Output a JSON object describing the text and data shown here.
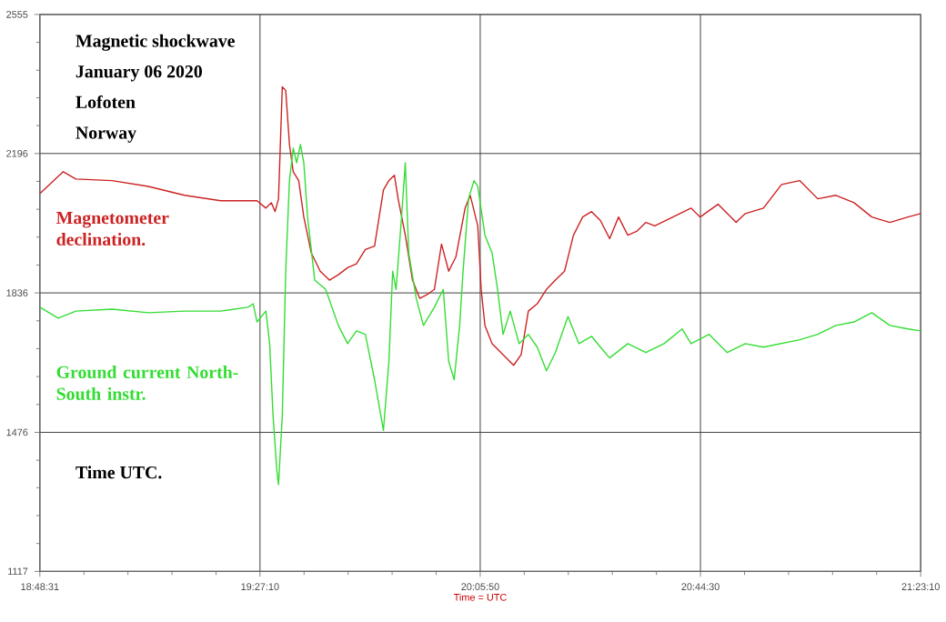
{
  "chart_data": {
    "type": "line",
    "title": "Magnetic shockwave",
    "subtitle": "January 06 2020",
    "xlabel": "Time = UTC",
    "annotations": [
      "Lofoten",
      "Norway",
      "Time UTC."
    ],
    "xlim": [
      18.80861,
      21.38611
    ],
    "ylim": [
      1117,
      2555
    ],
    "xticks": [
      {
        "value": 18.80861,
        "label": "18:48:31"
      },
      {
        "value": 18.9375,
        "label": null
      },
      {
        "value": 19.0664,
        "label": null
      },
      {
        "value": 19.1953,
        "label": null
      },
      {
        "value": 19.3242,
        "label": null
      },
      {
        "value": 19.45278,
        "label": "19:27:10"
      },
      {
        "value": 19.5817,
        "label": null
      },
      {
        "value": 19.7106,
        "label": null
      },
      {
        "value": 19.8394,
        "label": null
      },
      {
        "value": 19.9683,
        "label": null
      },
      {
        "value": 20.09722,
        "label": "20:05:50"
      },
      {
        "value": 20.2261,
        "label": null
      },
      {
        "value": 20.355,
        "label": null
      },
      {
        "value": 20.4839,
        "label": null
      },
      {
        "value": 20.6128,
        "label": null
      },
      {
        "value": 20.74167,
        "label": "20:44:30"
      },
      {
        "value": 20.8706,
        "label": null
      },
      {
        "value": 20.9994,
        "label": null
      },
      {
        "value": 21.1283,
        "label": null
      },
      {
        "value": 21.2572,
        "label": null
      },
      {
        "value": 21.38611,
        "label": "21:23:10"
      }
    ],
    "yticks": [
      1117,
      {
        "value": 1189,
        "label": null
      },
      {
        "value": 1261,
        "label": null
      },
      {
        "value": 1333,
        "label": null
      },
      {
        "value": 1404,
        "label": null
      },
      1476,
      {
        "value": 1548,
        "label": null
      },
      {
        "value": 1620,
        "label": null
      },
      {
        "value": 1692,
        "label": null
      },
      {
        "value": 1764,
        "label": null
      },
      1836,
      {
        "value": 1908,
        "label": null
      },
      {
        "value": 1980,
        "label": null
      },
      {
        "value": 2052,
        "label": null
      },
      {
        "value": 2124,
        "label": null
      },
      2196,
      {
        "value": 2268,
        "label": null
      },
      {
        "value": 2340,
        "label": null
      },
      {
        "value": 2411,
        "label": null
      },
      {
        "value": 2483,
        "label": null
      },
      2555
    ],
    "grid": true,
    "series": [
      {
        "name": "Magnetometer declination.",
        "color": "#cc2222",
        "x": [
          18.809,
          18.877,
          18.914,
          19.02,
          19.126,
          19.232,
          19.338,
          19.444,
          19.47,
          19.486,
          19.497,
          19.507,
          19.518,
          19.528,
          19.539,
          19.55,
          19.566,
          19.581,
          19.603,
          19.629,
          19.656,
          19.682,
          19.709,
          19.735,
          19.761,
          19.788,
          19.814,
          19.83,
          19.846,
          19.857,
          19.878,
          19.899,
          19.92,
          19.941,
          19.963,
          19.984,
          20.005,
          20.026,
          20.053,
          20.068,
          20.09,
          20.1,
          20.111,
          20.132,
          20.158,
          20.195,
          20.217,
          20.238,
          20.264,
          20.291,
          20.317,
          20.344,
          20.37,
          20.397,
          20.423,
          20.449,
          20.476,
          20.502,
          20.529,
          20.555,
          20.582,
          20.608,
          20.661,
          20.714,
          20.741,
          20.793,
          20.846,
          20.873,
          20.926,
          20.979,
          21.032,
          21.085,
          21.138,
          21.191,
          21.243,
          21.296,
          21.349,
          21.386
        ],
        "values": [
          2093,
          2149,
          2130,
          2126,
          2111,
          2088,
          2074,
          2074,
          2055,
          2069,
          2046,
          2079,
          2368,
          2359,
          2219,
          2149,
          2126,
          2032,
          1939,
          1892,
          1869,
          1883,
          1901,
          1911,
          1948,
          1957,
          2102,
          2126,
          2140,
          2079,
          1985,
          1869,
          1822,
          1831,
          1845,
          1962,
          1892,
          1929,
          2055,
          2088,
          2009,
          1845,
          1752,
          1705,
          1682,
          1649,
          1677,
          1789,
          1808,
          1845,
          1869,
          1892,
          1985,
          2032,
          2046,
          2023,
          1976,
          2032,
          1985,
          1995,
          2018,
          2009,
          2032,
          2055,
          2032,
          2065,
          2018,
          2041,
          2055,
          2116,
          2126,
          2079,
          2088,
          2069,
          2032,
          2018,
          2032,
          2041
        ]
      },
      {
        "name": "Ground current North-South instr.",
        "color": "#33dd33",
        "x": [
          18.809,
          18.862,
          18.914,
          19.02,
          19.126,
          19.232,
          19.338,
          19.417,
          19.433,
          19.444,
          19.47,
          19.481,
          19.491,
          19.502,
          19.507,
          19.518,
          19.528,
          19.539,
          19.55,
          19.56,
          19.571,
          19.581,
          19.592,
          19.613,
          19.645,
          19.682,
          19.709,
          19.735,
          19.761,
          19.788,
          19.814,
          19.83,
          19.841,
          19.851,
          19.867,
          19.878,
          19.888,
          19.91,
          19.931,
          19.963,
          19.989,
          20.005,
          20.021,
          20.037,
          20.047,
          20.063,
          20.079,
          20.09,
          20.111,
          20.132,
          20.148,
          20.164,
          20.185,
          20.211,
          20.238,
          20.264,
          20.291,
          20.317,
          20.354,
          20.386,
          20.423,
          20.449,
          20.476,
          20.529,
          20.582,
          20.635,
          20.688,
          20.714,
          20.767,
          20.82,
          20.873,
          20.926,
          21.032,
          21.085,
          21.138,
          21.191,
          21.243,
          21.296,
          21.349,
          21.386
        ],
        "values": [
          1799,
          1771,
          1789,
          1794,
          1785,
          1789,
          1789,
          1799,
          1808,
          1761,
          1789,
          1705,
          1519,
          1378,
          1341,
          1519,
          1892,
          2126,
          2210,
          2172,
          2219,
          2172,
          2032,
          1869,
          1845,
          1752,
          1705,
          1738,
          1729,
          1612,
          1481,
          1659,
          1892,
          1845,
          2032,
          2172,
          1939,
          1822,
          1752,
          1799,
          1845,
          1659,
          1612,
          1752,
          1892,
          2079,
          2126,
          2111,
          1985,
          1939,
          1845,
          1729,
          1789,
          1705,
          1729,
          1696,
          1635,
          1682,
          1775,
          1705,
          1724,
          1696,
          1668,
          1705,
          1682,
          1705,
          1743,
          1705,
          1729,
          1682,
          1705,
          1696,
          1715,
          1729,
          1752,
          1761,
          1785,
          1752,
          1743,
          1738
        ]
      }
    ]
  }
}
